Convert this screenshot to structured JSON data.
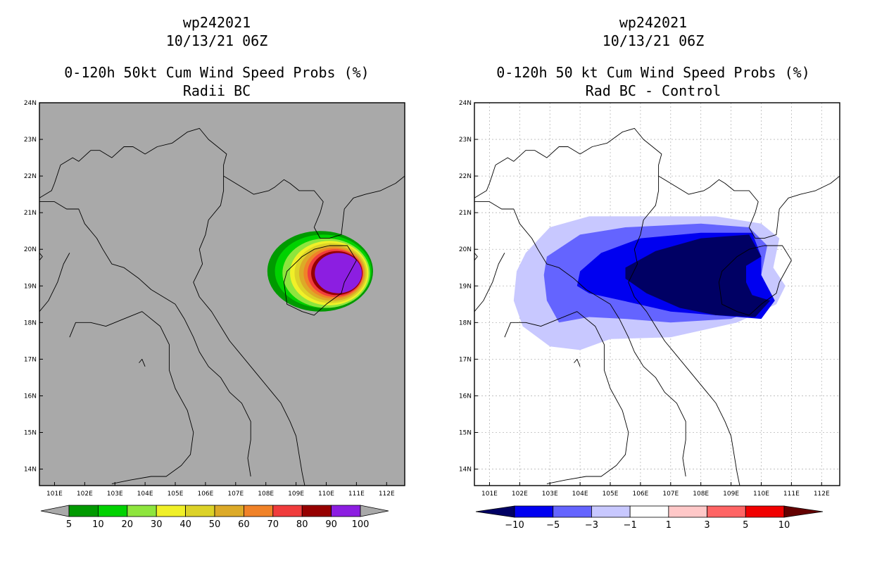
{
  "colors": {
    "panel_left_bg": "#a9a9a9",
    "prob_levels": [
      "#009a00",
      "#00d200",
      "#8ee53d",
      "#f0f028",
      "#dcd228",
      "#dcaa28",
      "#f08228",
      "#f03c3c",
      "#960000",
      "#8c1ee1"
    ],
    "diff_neg": [
      "#000064",
      "#0000f0",
      "#6464ff",
      "#c8c8ff"
    ],
    "diff_pos": [
      "#ffc8c8",
      "#ff6464",
      "#f00000",
      "#640000"
    ]
  },
  "chart_data": [
    {
      "type": "heatmap",
      "panel": "left",
      "title": [
        "wp242021",
        "10/13/21 06Z",
        "0-120h 50kt Cum Wind Speed Probs (%)",
        "Radii BC"
      ],
      "xlabel": "",
      "ylabel": "",
      "xlim": [
        100.5,
        112.6
      ],
      "ylim": [
        13.55,
        24
      ],
      "x_ticks": [
        "101E",
        "102E",
        "103E",
        "104E",
        "105E",
        "106E",
        "107E",
        "108E",
        "109E",
        "110E",
        "111E",
        "112E"
      ],
      "y_ticks": [
        "14N",
        "15N",
        "16N",
        "17N",
        "18N",
        "19N",
        "20N",
        "21N",
        "22N",
        "23N",
        "24N"
      ],
      "grid": false,
      "colorbar_labels": [
        "5",
        "10",
        "20",
        "30",
        "40",
        "50",
        "60",
        "70",
        "80",
        "90",
        "100"
      ],
      "contours": [
        {
          "level": 5,
          "center": [
            109.8,
            19.4
          ],
          "rx": 1.75,
          "ry": 1.1
        },
        {
          "level": 10,
          "center": [
            109.9,
            19.4
          ],
          "rx": 1.6,
          "ry": 1.0
        },
        {
          "level": 20,
          "center": [
            110.0,
            19.35
          ],
          "rx": 1.45,
          "ry": 0.95
        },
        {
          "level": 30,
          "center": [
            110.1,
            19.35
          ],
          "rx": 1.3,
          "ry": 0.88
        },
        {
          "level": 40,
          "center": [
            110.15,
            19.35
          ],
          "rx": 1.2,
          "ry": 0.82
        },
        {
          "level": 50,
          "center": [
            110.2,
            19.35
          ],
          "rx": 1.1,
          "ry": 0.76
        },
        {
          "level": 60,
          "center": [
            110.25,
            19.35
          ],
          "rx": 1.0,
          "ry": 0.7
        },
        {
          "level": 70,
          "center": [
            110.3,
            19.35
          ],
          "rx": 0.92,
          "ry": 0.65
        },
        {
          "level": 80,
          "center": [
            110.35,
            19.35
          ],
          "rx": 0.85,
          "ry": 0.6
        },
        {
          "level": 90,
          "center": [
            110.4,
            19.35
          ],
          "rx": 0.78,
          "ry": 0.55
        }
      ]
    },
    {
      "type": "heatmap",
      "panel": "right",
      "title": [
        "wp242021",
        "10/13/21 06Z",
        "0-120h 50 kt Cum Wind Speed Probs (%)",
        "Rad BC - Control"
      ],
      "xlabel": "",
      "ylabel": "",
      "xlim": [
        100.5,
        112.6
      ],
      "ylim": [
        13.55,
        24
      ],
      "x_ticks": [
        "101E",
        "102E",
        "103E",
        "104E",
        "105E",
        "106E",
        "107E",
        "108E",
        "109E",
        "110E",
        "111E",
        "112E"
      ],
      "y_ticks": [
        "14N",
        "15N",
        "16N",
        "17N",
        "18N",
        "19N",
        "20N",
        "21N",
        "22N",
        "23N",
        "24N"
      ],
      "grid": true,
      "colorbar_labels": [
        "-10",
        "-5",
        "-3",
        "-1",
        "1",
        "3",
        "5",
        "10"
      ],
      "contours": [
        {
          "level": -1,
          "points": [
            [
              102.2,
              19.9
            ],
            [
              103.0,
              20.6
            ],
            [
              104.3,
              20.9
            ],
            [
              106.2,
              20.9
            ],
            [
              108.5,
              20.9
            ],
            [
              110.0,
              20.7
            ],
            [
              110.6,
              20.3
            ],
            [
              110.4,
              19.5
            ],
            [
              110.8,
              19.0
            ],
            [
              110.5,
              18.5
            ],
            [
              109.2,
              18.0
            ],
            [
              107.0,
              17.6
            ],
            [
              105.0,
              17.55
            ],
            [
              104.0,
              17.25
            ],
            [
              103.0,
              17.35
            ],
            [
              102.1,
              17.9
            ],
            [
              101.8,
              18.6
            ],
            [
              101.9,
              19.4
            ]
          ]
        },
        {
          "level": -3,
          "points": [
            [
              102.9,
              19.8
            ],
            [
              104.0,
              20.4
            ],
            [
              105.5,
              20.6
            ],
            [
              108.0,
              20.7
            ],
            [
              109.6,
              20.6
            ],
            [
              110.2,
              20.1
            ],
            [
              110.0,
              19.3
            ],
            [
              110.3,
              18.5
            ],
            [
              109.0,
              18.1
            ],
            [
              107.0,
              18.0
            ],
            [
              105.5,
              18.1
            ],
            [
              104.3,
              18.15
            ],
            [
              103.3,
              18.0
            ],
            [
              102.9,
              18.6
            ],
            [
              102.8,
              19.3
            ]
          ]
        },
        {
          "level": -5,
          "points": [
            [
              104.0,
              19.4
            ],
            [
              104.7,
              19.9
            ],
            [
              106.0,
              20.3
            ],
            [
              108.0,
              20.45
            ],
            [
              109.7,
              20.45
            ],
            [
              110.0,
              19.8
            ],
            [
              110.0,
              19.3
            ],
            [
              110.45,
              18.6
            ],
            [
              110.0,
              18.1
            ],
            [
              108.5,
              18.2
            ],
            [
              107.0,
              18.3
            ],
            [
              105.4,
              18.6
            ],
            [
              104.3,
              18.8
            ],
            [
              103.9,
              19.0
            ]
          ]
        },
        {
          "level": -10,
          "points": [
            [
              105.5,
              19.5
            ],
            [
              106.5,
              19.95
            ],
            [
              108.0,
              20.3
            ],
            [
              109.6,
              20.4
            ],
            [
              110.0,
              19.8
            ],
            [
              109.5,
              19.55
            ],
            [
              109.5,
              19.1
            ],
            [
              109.7,
              18.75
            ],
            [
              110.3,
              18.6
            ],
            [
              109.8,
              18.15
            ],
            [
              108.5,
              18.2
            ],
            [
              107.3,
              18.4
            ],
            [
              106.2,
              18.8
            ],
            [
              105.5,
              19.2
            ]
          ]
        }
      ]
    }
  ]
}
